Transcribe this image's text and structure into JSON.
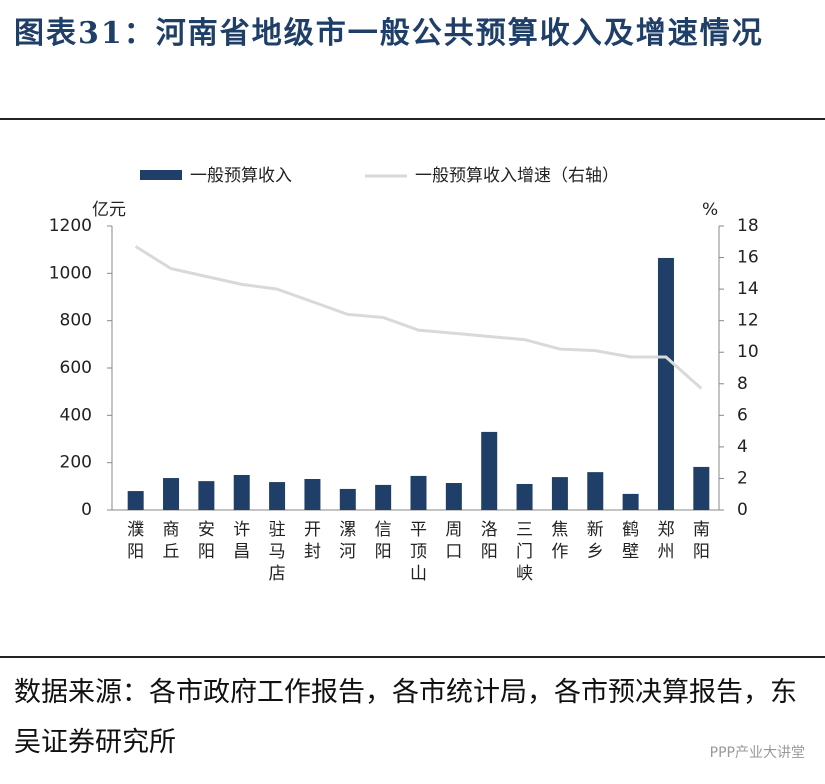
{
  "title": "图表31：河南省地级市一般公共预算收入及增速情况",
  "source": "数据来源：各市政府工作报告，各市统计局，各市预决算报告，东吴证券研究所",
  "watermark": "PPP产业大讲堂",
  "chart_data": {
    "type": "bar-line",
    "categories": [
      "濮阳",
      "商丘",
      "安阳",
      "许昌",
      "驻马店",
      "开封",
      "漯河",
      "信阳",
      "平顶山",
      "周口",
      "洛阳",
      "三门峡",
      "焦作",
      "新乡",
      "鹤壁",
      "郑州",
      "南阳"
    ],
    "series": [
      {
        "name": "一般预算收入",
        "color": "#1f3f68",
        "type": "bar",
        "values": [
          80,
          135,
          122,
          148,
          118,
          131,
          89,
          106,
          144,
          114,
          330,
          110,
          139,
          160,
          68,
          1065,
          182
        ]
      },
      {
        "name": "一般预算收入增速（右轴）",
        "color": "#d9d9d9",
        "type": "line",
        "axis": "y2",
        "values": [
          16.7,
          15.3,
          14.8,
          14.3,
          14.0,
          13.2,
          12.4,
          12.2,
          11.4,
          11.2,
          11.0,
          10.8,
          10.2,
          10.1,
          9.7,
          9.7,
          7.7
        ]
      }
    ],
    "y_label": "亿元",
    "y2_label": "%",
    "ylim": [
      0,
      1200
    ],
    "yticks": [
      0,
      200,
      400,
      600,
      800,
      1000,
      1200
    ],
    "y2lim": [
      0,
      18
    ],
    "y2ticks": [
      0,
      2,
      4,
      6,
      8,
      10,
      12,
      14,
      16,
      18
    ],
    "legend": "top"
  }
}
